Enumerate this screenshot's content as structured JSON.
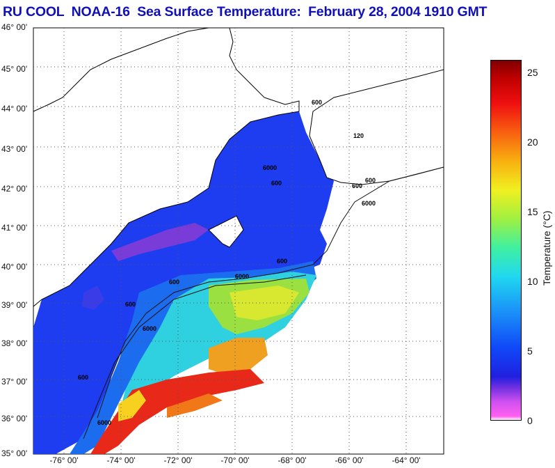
{
  "title": "RU COOL  NOAA-16  Sea Surface Temperature:  February 28, 2004 1910 GMT",
  "latitude_labels": [
    "46° 00'",
    "45° 00'",
    "44° 00'",
    "43° 00'",
    "42° 00'",
    "41° 00'",
    "40° 00'",
    "39° 00'",
    "38° 00'",
    "37° 00'",
    "36° 00'",
    "35° 00'"
  ],
  "longitude_labels": [
    "-76° 00'",
    "-74° 00'",
    "-72° 00'",
    "-70° 00'",
    "-68° 00'",
    "-66° 00'",
    "-64° 00'"
  ],
  "bathymetry_contour_labels": [
    "600",
    "6000",
    "600",
    "6000",
    "600",
    "6000",
    "600",
    "6000",
    "600",
    "6000",
    "600",
    "600",
    "120",
    "600"
  ],
  "colorbar": {
    "title": "Temperature (°C)",
    "ticks": [
      "25",
      "20",
      "15",
      "10",
      "5",
      "0"
    ],
    "range": [
      0,
      26
    ]
  }
}
